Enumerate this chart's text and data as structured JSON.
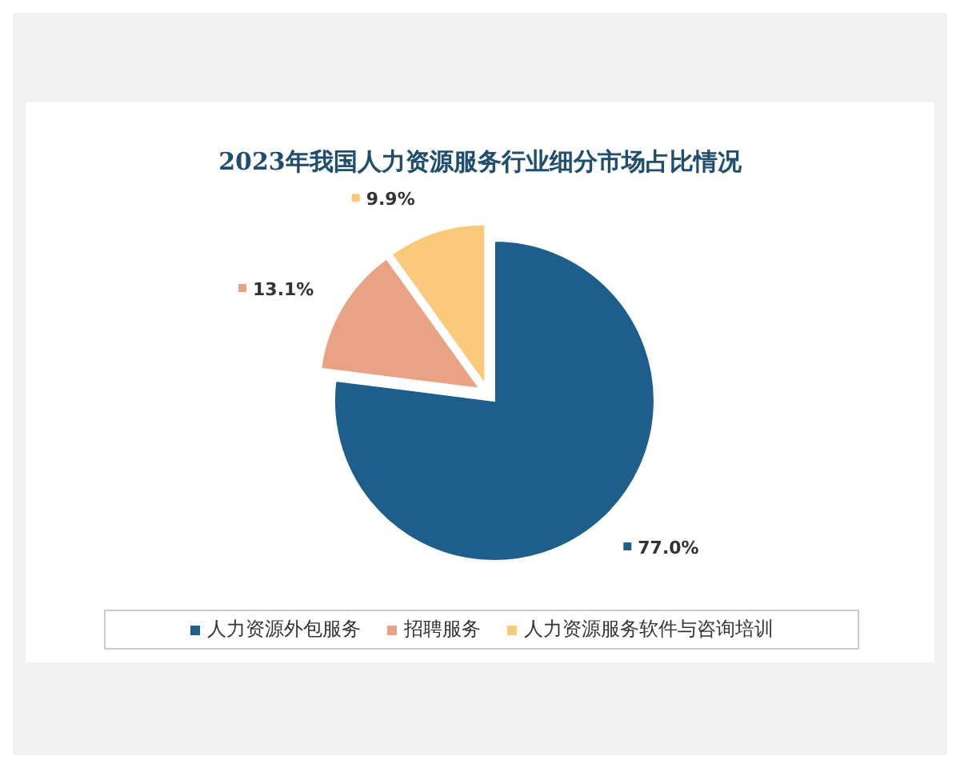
{
  "chart_data": {
    "type": "pie",
    "title": "2023年我国人力资源服务行业细分市场占比情况",
    "categories": [
      "人力资源外包服务",
      "招聘服务",
      "人力资源服务软件与咨询培训"
    ],
    "values": [
      77.0,
      13.1,
      9.9
    ],
    "colors": [
      "#1d5f8a",
      "#e9a283",
      "#fbc97c"
    ],
    "value_labels": [
      "77.0%",
      "13.1%",
      "9.9%"
    ],
    "legend": "bottom"
  }
}
